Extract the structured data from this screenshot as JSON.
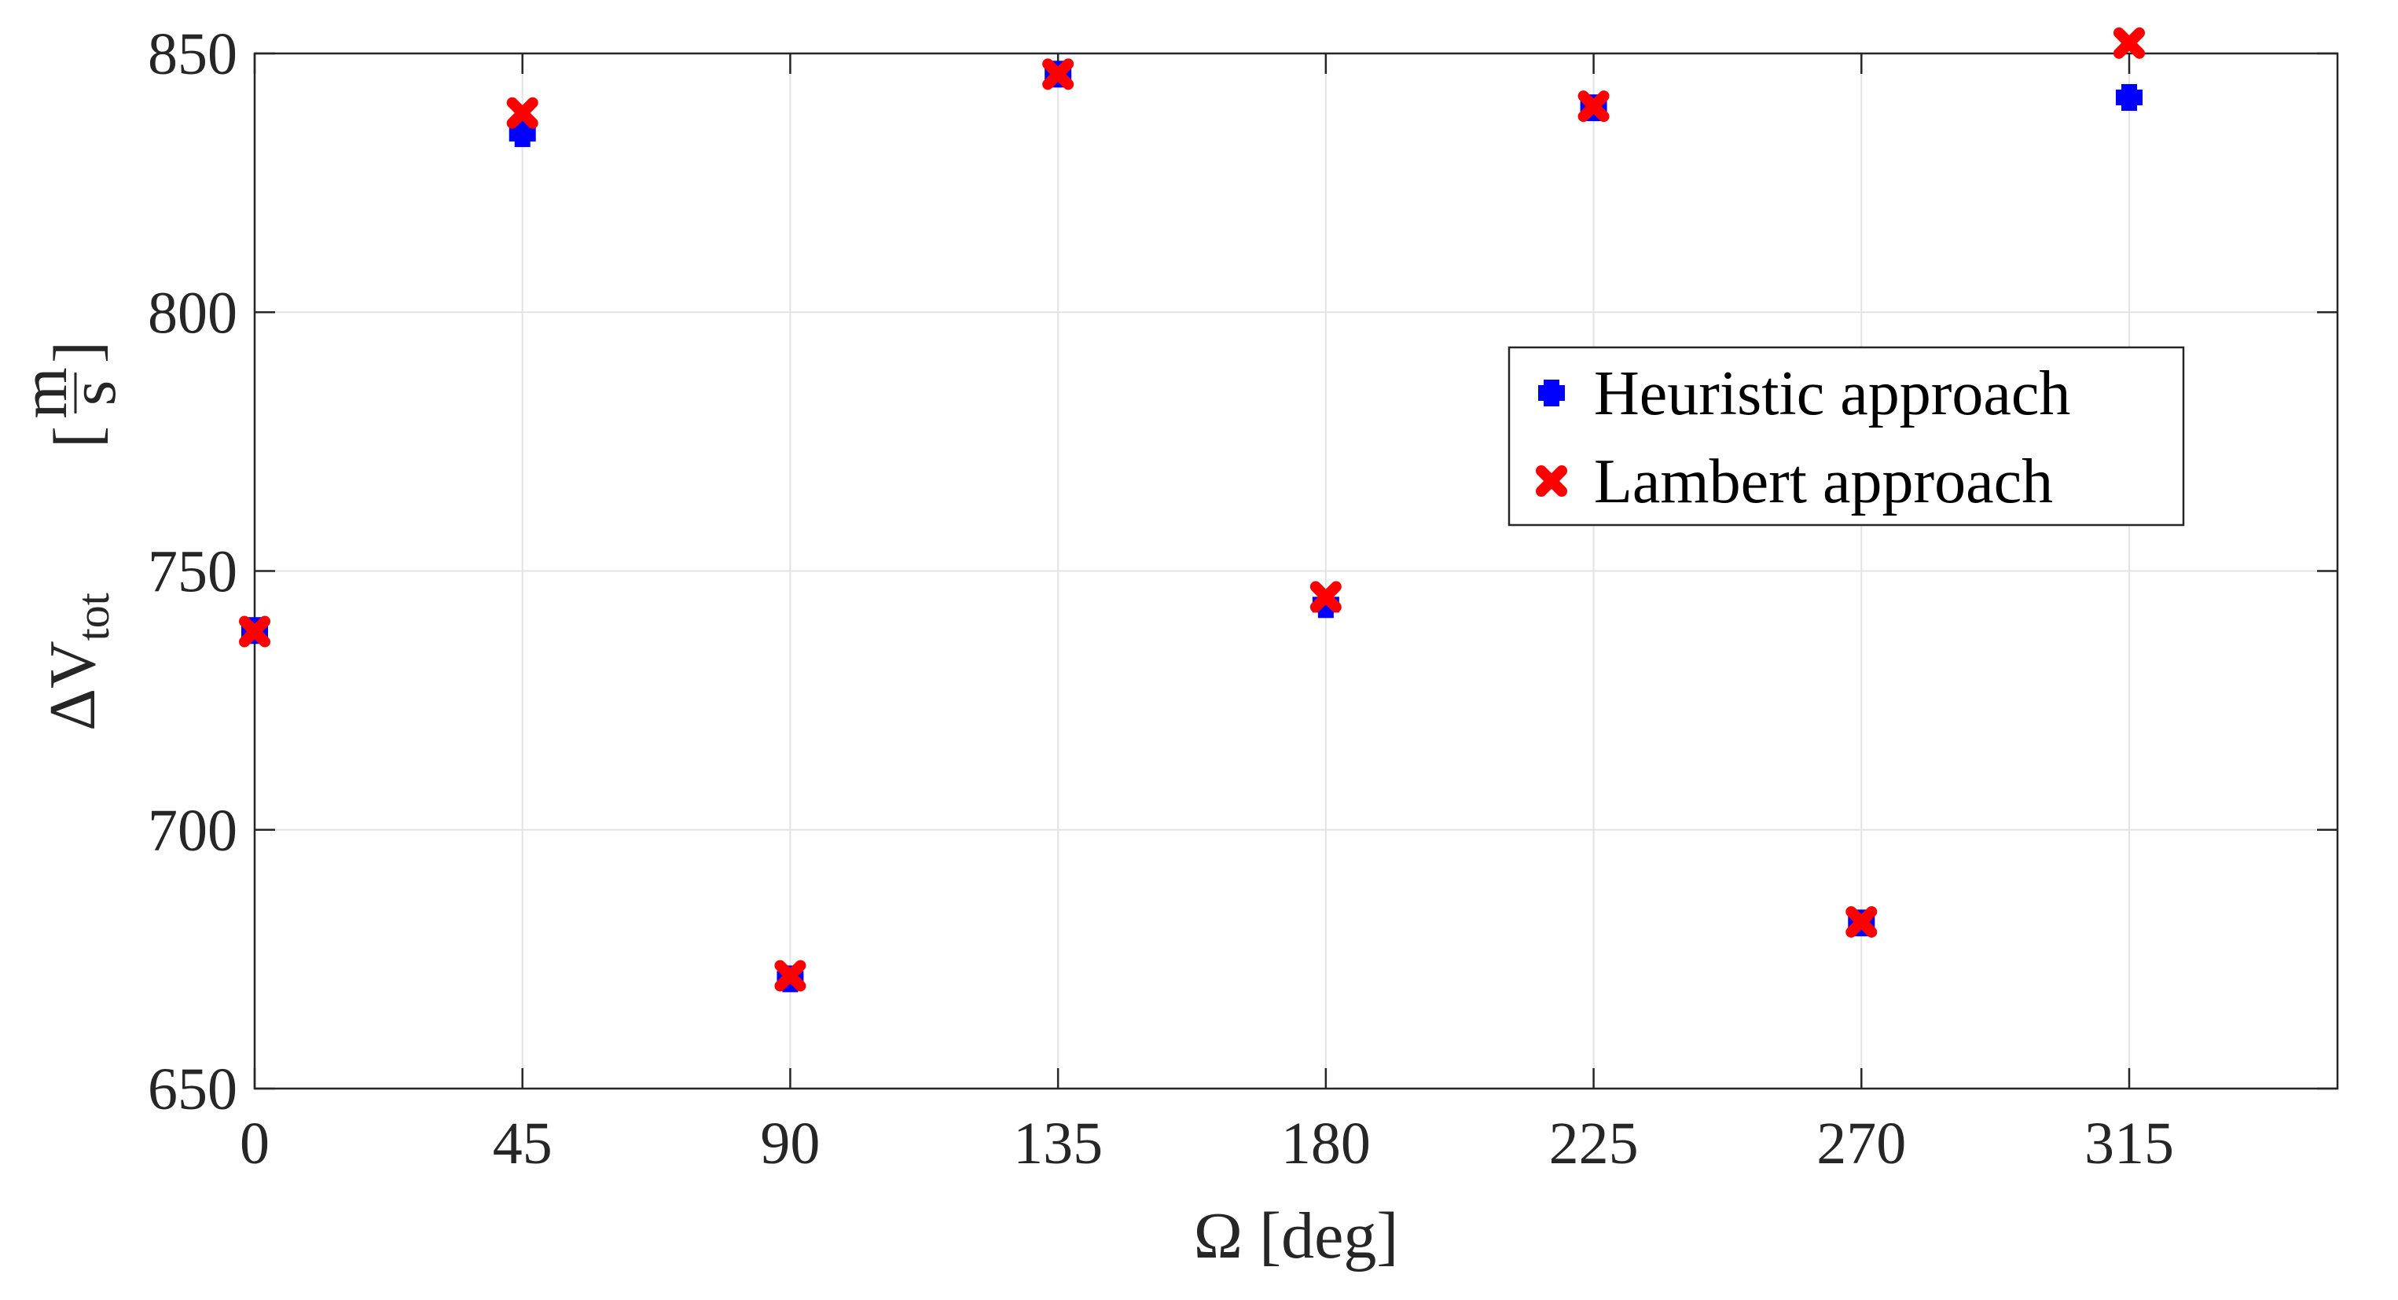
{
  "chart_data": {
    "type": "scatter",
    "xlabel": "Ω [deg]",
    "ylabel_main": "ΔV",
    "ylabel_sub": "tot",
    "ylabel_unit_num": "m",
    "ylabel_unit_den": "s",
    "xlim": [
      0,
      350
    ],
    "ylim": [
      650,
      850
    ],
    "x_ticks": [
      0,
      45,
      90,
      135,
      180,
      225,
      270,
      315
    ],
    "x_tick_labels": [
      "0",
      "45",
      "90",
      "135",
      "180",
      "225",
      "270",
      "315"
    ],
    "y_ticks": [
      650,
      700,
      750,
      800,
      850
    ],
    "y_tick_labels": [
      "650",
      "700",
      "750",
      "800",
      "850"
    ],
    "grid": true,
    "legend_position": "right-center",
    "series": [
      {
        "name": "Heuristic approach",
        "color": "#0000ff",
        "marker": "plus",
        "x": [
          0,
          45,
          90,
          135,
          180,
          225,
          270,
          315
        ],
        "y": [
          738.5,
          834.5,
          671.2,
          846.0,
          743.5,
          839.5,
          682.0,
          841.5
        ]
      },
      {
        "name": "Lambert approach",
        "color": "#ff0000",
        "marker": "x",
        "x": [
          0,
          45,
          90,
          135,
          180,
          225,
          270,
          315
        ],
        "y": [
          738.3,
          838.5,
          671.8,
          846.0,
          745.0,
          839.8,
          682.2,
          852.0
        ]
      }
    ]
  }
}
